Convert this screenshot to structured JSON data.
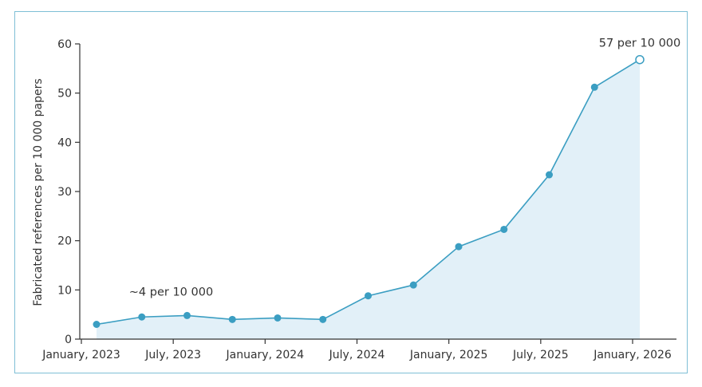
{
  "chart_data": {
    "type": "area",
    "ylabel": "Fabricated references per 10 000 papers",
    "xlabel": "",
    "ylim": [
      0,
      60
    ],
    "yticks": [
      0,
      10,
      20,
      30,
      40,
      50,
      60
    ],
    "xticks": [
      "January, 2023",
      "July, 2023",
      "January, 2024",
      "July, 2024",
      "January, 2025",
      "July, 2025",
      "January, 2026"
    ],
    "grid": false,
    "x": [
      "2023-01",
      "2023-04",
      "2023-07",
      "2023-10",
      "2024-01",
      "2024-04",
      "2024-07",
      "2024-10",
      "2025-01",
      "2025-04",
      "2025-07",
      "2025-10",
      "2026-01"
    ],
    "series": [
      {
        "values": [
          3.0,
          4.5,
          4.8,
          4.0,
          4.3,
          4.0,
          8.8,
          11.0,
          18.8,
          22.3,
          33.4,
          51.2,
          56.8
        ]
      }
    ],
    "annotations": [
      {
        "text": "~4 per 10 000",
        "x": "2023-07"
      },
      {
        "text": "57 per 10 000",
        "x": "2026-01"
      }
    ],
    "colors": {
      "line": "#3b9ec2",
      "fill": "#e2f0f8",
      "axis": "#333333",
      "frame": "#7fbfd6",
      "open_marker_fill": "#ffffff"
    }
  }
}
